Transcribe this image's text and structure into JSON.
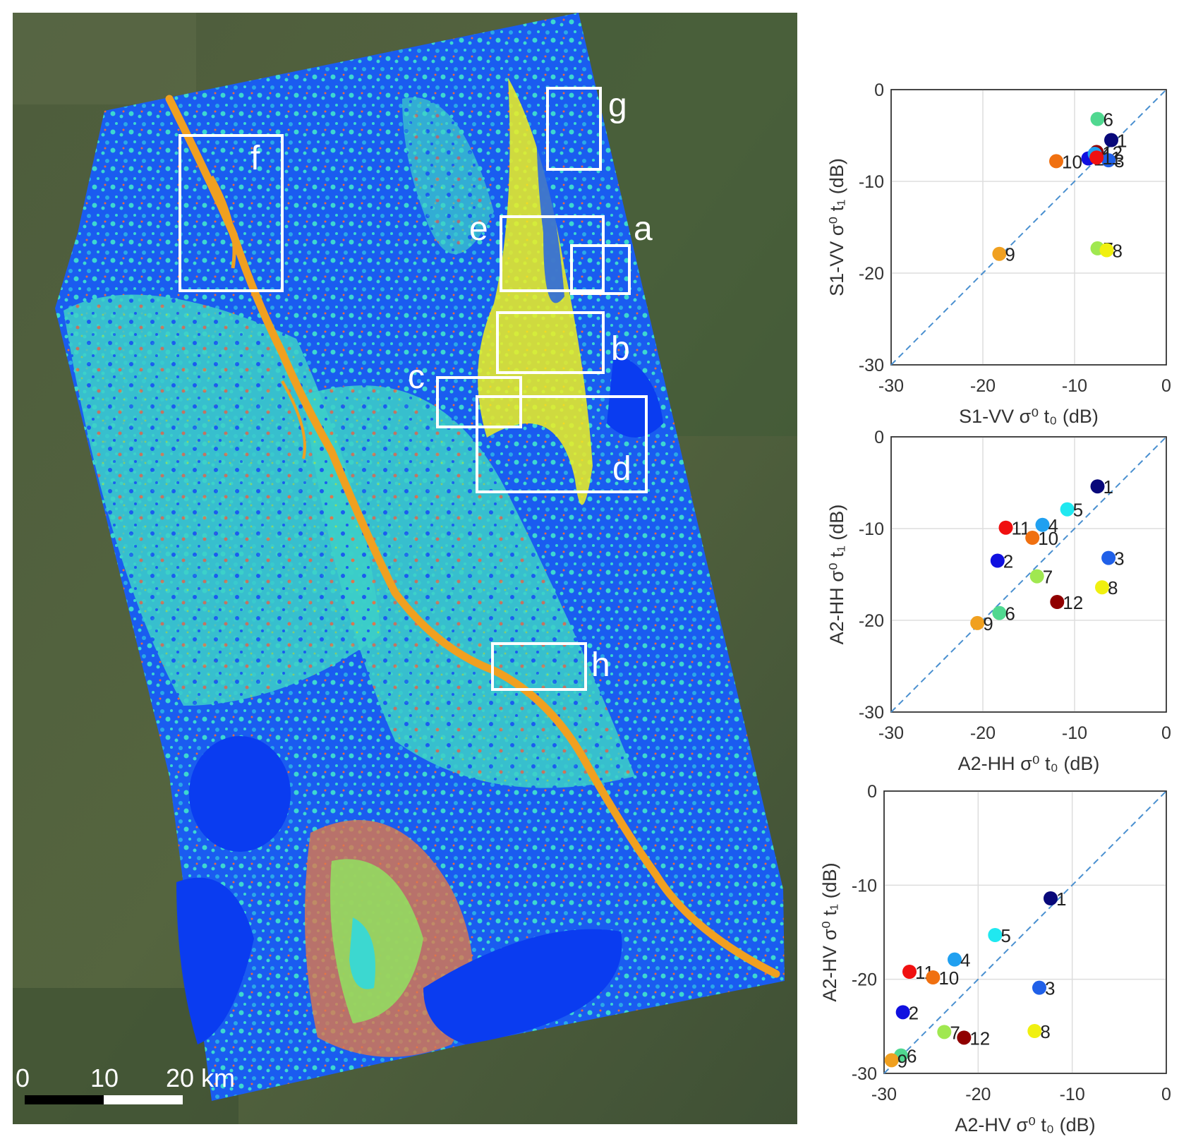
{
  "map": {
    "box_labels": [
      "a",
      "b",
      "c",
      "d",
      "e",
      "f",
      "g",
      "h"
    ],
    "scale_bar": {
      "tick_labels": [
        "0",
        "10",
        "20 km"
      ]
    },
    "legend_colors": {
      "satellite_bg": "#4a5a3a",
      "class_dark_blue": "#0a3cf0",
      "class_cyan": "#3cd8d0",
      "class_orange_river": "#f0a020",
      "class_red": "#e84a20",
      "class_yellow": "#f0f020",
      "class_green": "#90e060"
    }
  },
  "point_colors": {
    "1": "#08087a",
    "2": "#1010e0",
    "3": "#2060e8",
    "4": "#20a0f0",
    "5": "#20e8f0",
    "6": "#50d890",
    "7": "#a0e850",
    "8": "#f0f010",
    "9": "#f0a020",
    "10": "#f07010",
    "11": "#f01010",
    "12": "#900000"
  },
  "chart_data": [
    {
      "type": "scatter",
      "xlabel": "S1-VV σ⁰ t₀ (dB)",
      "ylabel": "S1-VV σ⁰ t₁ (dB)",
      "xlim": [
        -30,
        0
      ],
      "ylim": [
        -30,
        0
      ],
      "xticks": [
        "-30",
        "-20",
        "-10",
        "0"
      ],
      "yticks": [
        "-30",
        "-20",
        "-10",
        "0"
      ],
      "grid": true,
      "reference_line": "y = x (dashed)",
      "points": [
        {
          "label": "6",
          "x": -7.5,
          "y": -3.2
        },
        {
          "label": "1",
          "x": -6.0,
          "y": -5.5
        },
        {
          "label": "12",
          "x": -7.6,
          "y": -6.8
        },
        {
          "label": "2",
          "x": -8.5,
          "y": -7.5
        },
        {
          "label": "4",
          "x": -7.8,
          "y": -7.0
        },
        {
          "label": "3",
          "x": -6.3,
          "y": -7.7
        },
        {
          "label": "10",
          "x": -12.0,
          "y": -7.8
        },
        {
          "label": "11",
          "x": -7.6,
          "y": -7.4
        },
        {
          "label": "7",
          "x": -7.5,
          "y": -17.3
        },
        {
          "label": "8",
          "x": -6.5,
          "y": -17.5
        },
        {
          "label": "9",
          "x": -18.2,
          "y": -17.9
        }
      ]
    },
    {
      "type": "scatter",
      "xlabel": "A2-HH σ⁰ t₀ (dB)",
      "ylabel": "A2-HH σ⁰ t₁ (dB)",
      "xlim": [
        -30,
        0
      ],
      "ylim": [
        -30,
        0
      ],
      "xticks": [
        "-30",
        "-20",
        "-10",
        "0"
      ],
      "yticks": [
        "-30",
        "-20",
        "-10",
        "0"
      ],
      "grid": true,
      "reference_line": "y = x (dashed)",
      "points": [
        {
          "label": "1",
          "x": -7.5,
          "y": -5.4
        },
        {
          "label": "5",
          "x": -10.8,
          "y": -7.9
        },
        {
          "label": "11",
          "x": -17.5,
          "y": -9.9
        },
        {
          "label": "4",
          "x": -13.5,
          "y": -9.6
        },
        {
          "label": "10",
          "x": -14.6,
          "y": -11.0
        },
        {
          "label": "2",
          "x": -18.4,
          "y": -13.5
        },
        {
          "label": "3",
          "x": -6.3,
          "y": -13.2
        },
        {
          "label": "7",
          "x": -14.1,
          "y": -15.2
        },
        {
          "label": "8",
          "x": -7.0,
          "y": -16.4
        },
        {
          "label": "12",
          "x": -11.9,
          "y": -18.0
        },
        {
          "label": "6",
          "x": -18.2,
          "y": -19.2
        },
        {
          "label": "9",
          "x": -20.6,
          "y": -20.3
        }
      ]
    },
    {
      "type": "scatter",
      "xlabel": "A2-HV σ⁰ t₀ (dB)",
      "ylabel": "A2-HV σ⁰ t₁ (dB)",
      "xlim": [
        -30,
        0
      ],
      "ylim": [
        -30,
        0
      ],
      "xticks": [
        "-30",
        "-20",
        "-10",
        "0"
      ],
      "yticks": [
        "-30",
        "-20",
        "-10",
        "0"
      ],
      "grid": true,
      "reference_line": "y = x (dashed)",
      "points": [
        {
          "label": "1",
          "x": -12.3,
          "y": -11.4
        },
        {
          "label": "5",
          "x": -18.2,
          "y": -15.3
        },
        {
          "label": "4",
          "x": -22.5,
          "y": -17.9
        },
        {
          "label": "11",
          "x": -27.3,
          "y": -19.2
        },
        {
          "label": "10",
          "x": -24.8,
          "y": -19.8
        },
        {
          "label": "3",
          "x": -13.5,
          "y": -20.9
        },
        {
          "label": "2",
          "x": -28.0,
          "y": -23.5
        },
        {
          "label": "7",
          "x": -23.6,
          "y": -25.6
        },
        {
          "label": "8",
          "x": -14.0,
          "y": -25.5
        },
        {
          "label": "12",
          "x": -21.5,
          "y": -26.2
        },
        {
          "label": "6",
          "x": -28.2,
          "y": -28.1
        },
        {
          "label": "9",
          "x": -29.2,
          "y": -28.6
        }
      ]
    }
  ]
}
